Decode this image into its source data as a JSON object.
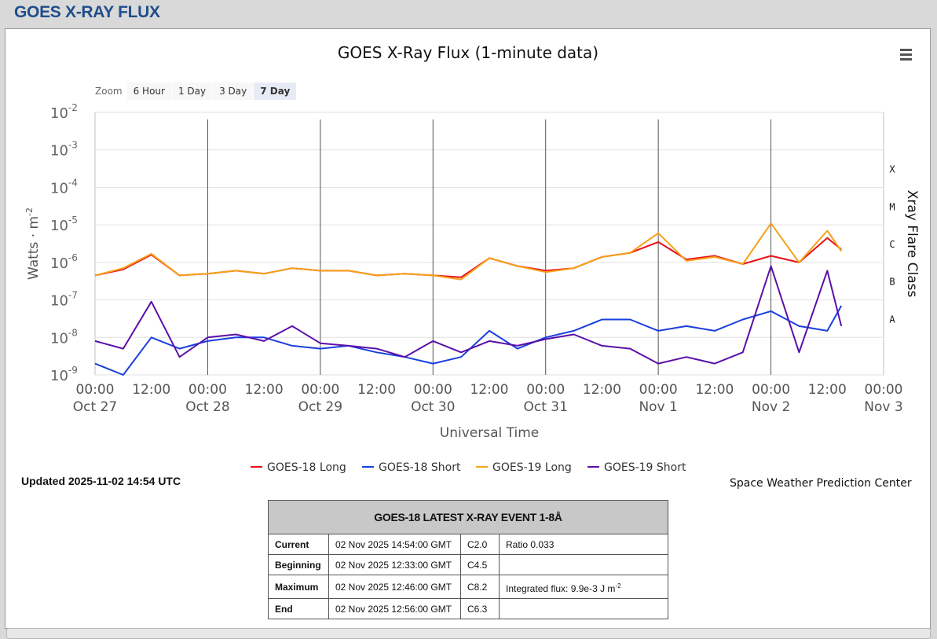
{
  "page": {
    "title": "GOES X-RAY FLUX"
  },
  "menu": {
    "icon": "hamburger-menu-icon"
  },
  "zoom": {
    "label": "Zoom",
    "buttons": [
      "6 Hour",
      "1 Day",
      "3 Day",
      "7 Day"
    ],
    "active": "7 Day"
  },
  "colors": {
    "goes18_long": "#e8121a",
    "goes18_short": "#1a3fe0",
    "goes19_long": "#f7a11a",
    "goes19_short": "#5a10a8",
    "title_blue": "#1f4e8c"
  },
  "chart_data": {
    "type": "line",
    "title": "GOES X-Ray Flux (1-minute data)",
    "xlabel": "Universal Time",
    "ylabel": "Watts · m",
    "ylabel_sup": "-2",
    "y2label": "Xray Flare Class",
    "yscale": "log",
    "ylim": [
      1e-09,
      0.01
    ],
    "y_ticks": [
      {
        "base": "10",
        "exp": "-9"
      },
      {
        "base": "10",
        "exp": "-8"
      },
      {
        "base": "10",
        "exp": "-7"
      },
      {
        "base": "10",
        "exp": "-6"
      },
      {
        "base": "10",
        "exp": "-5"
      },
      {
        "base": "10",
        "exp": "-4"
      },
      {
        "base": "10",
        "exp": "-3"
      },
      {
        "base": "10",
        "exp": "-2"
      }
    ],
    "flare_classes": [
      "A",
      "B",
      "C",
      "M",
      "X"
    ],
    "x_ticks": [
      {
        "time": "00:00",
        "date": "Oct 27"
      },
      {
        "time": "12:00",
        "date": ""
      },
      {
        "time": "00:00",
        "date": "Oct 28"
      },
      {
        "time": "12:00",
        "date": ""
      },
      {
        "time": "00:00",
        "date": "Oct 29"
      },
      {
        "time": "12:00",
        "date": ""
      },
      {
        "time": "00:00",
        "date": "Oct 30"
      },
      {
        "time": "12:00",
        "date": ""
      },
      {
        "time": "00:00",
        "date": "Oct 31"
      },
      {
        "time": "12:00",
        "date": ""
      },
      {
        "time": "00:00",
        "date": "Nov 1"
      },
      {
        "time": "12:00",
        "date": ""
      },
      {
        "time": "00:00",
        "date": "Nov 2"
      },
      {
        "time": "12:00",
        "date": ""
      },
      {
        "time": "00:00",
        "date": "Nov 3"
      }
    ],
    "xlim": [
      "2025-10-27 00:00",
      "2025-11-03 00:00"
    ],
    "grid": true,
    "legend_position": "bottom-center",
    "series": [
      {
        "name": "GOES-18 Long",
        "x": [
          "2025-10-27 00:00",
          "2025-10-27 06:00",
          "2025-10-27 12:00",
          "2025-10-27 18:00",
          "2025-10-28 00:00",
          "2025-10-28 06:00",
          "2025-10-28 12:00",
          "2025-10-28 18:00",
          "2025-10-29 00:00",
          "2025-10-29 06:00",
          "2025-10-29 12:00",
          "2025-10-29 18:00",
          "2025-10-30 00:00",
          "2025-10-30 06:00",
          "2025-10-30 12:00",
          "2025-10-30 18:00",
          "2025-10-31 00:00",
          "2025-10-31 06:00",
          "2025-10-31 12:00",
          "2025-10-31 18:00",
          "2025-11-01 00:00",
          "2025-11-01 06:00",
          "2025-11-01 12:00",
          "2025-11-01 18:00",
          "2025-11-02 00:00",
          "2025-11-02 06:00",
          "2025-11-02 12:00",
          "2025-11-02 15:00"
        ],
        "y": [
          4.5e-07,
          6.5e-07,
          1.6e-06,
          4.5e-07,
          5e-07,
          6e-07,
          5e-07,
          7e-07,
          6e-07,
          6e-07,
          4.5e-07,
          5e-07,
          4.5e-07,
          4e-07,
          1.3e-06,
          8e-07,
          6e-07,
          7e-07,
          1.4e-06,
          1.8e-06,
          3.5e-06,
          1.2e-06,
          1.5e-06,
          9e-07,
          1.5e-06,
          1e-06,
          4.5e-06,
          2.2e-06
        ]
      },
      {
        "name": "GOES-18 Short",
        "x": [
          "2025-10-27 00:00",
          "2025-10-27 06:00",
          "2025-10-27 12:00",
          "2025-10-27 18:00",
          "2025-10-28 00:00",
          "2025-10-28 06:00",
          "2025-10-28 12:00",
          "2025-10-28 18:00",
          "2025-10-29 00:00",
          "2025-10-29 06:00",
          "2025-10-29 12:00",
          "2025-10-29 18:00",
          "2025-10-30 00:00",
          "2025-10-30 06:00",
          "2025-10-30 12:00",
          "2025-10-30 18:00",
          "2025-10-31 00:00",
          "2025-10-31 06:00",
          "2025-10-31 12:00",
          "2025-10-31 18:00",
          "2025-11-01 00:00",
          "2025-11-01 06:00",
          "2025-11-01 12:00",
          "2025-11-01 18:00",
          "2025-11-02 00:00",
          "2025-11-02 06:00",
          "2025-11-02 12:00",
          "2025-11-02 15:00"
        ],
        "y": [
          2e-09,
          1e-09,
          1e-08,
          5e-09,
          8e-09,
          1e-08,
          1e-08,
          6e-09,
          5e-09,
          6e-09,
          4e-09,
          3e-09,
          2e-09,
          3e-09,
          1.5e-08,
          5e-09,
          1e-08,
          1.5e-08,
          3e-08,
          3e-08,
          1.5e-08,
          2e-08,
          1.5e-08,
          3e-08,
          5e-08,
          2e-08,
          1.5e-08,
          7e-08
        ]
      },
      {
        "name": "GOES-19 Long",
        "x": [
          "2025-10-27 00:00",
          "2025-10-27 06:00",
          "2025-10-27 12:00",
          "2025-10-27 18:00",
          "2025-10-28 00:00",
          "2025-10-28 06:00",
          "2025-10-28 12:00",
          "2025-10-28 18:00",
          "2025-10-29 00:00",
          "2025-10-29 06:00",
          "2025-10-29 12:00",
          "2025-10-29 18:00",
          "2025-10-30 00:00",
          "2025-10-30 06:00",
          "2025-10-30 12:00",
          "2025-10-30 18:00",
          "2025-10-31 00:00",
          "2025-10-31 06:00",
          "2025-10-31 12:00",
          "2025-10-31 18:00",
          "2025-11-01 00:00",
          "2025-11-01 06:00",
          "2025-11-01 12:00",
          "2025-11-01 18:00",
          "2025-11-02 00:00",
          "2025-11-02 06:00",
          "2025-11-02 12:00",
          "2025-11-02 15:00"
        ],
        "y": [
          4.5e-07,
          7e-07,
          1.7e-06,
          4.5e-07,
          5e-07,
          6e-07,
          5e-07,
          7e-07,
          6e-07,
          6e-07,
          4.5e-07,
          5e-07,
          4.5e-07,
          3.5e-07,
          1.3e-06,
          8e-07,
          5.5e-07,
          7e-07,
          1.4e-06,
          1.8e-06,
          6e-06,
          1.1e-06,
          1.4e-06,
          9e-07,
          1.1e-05,
          1e-06,
          7e-06,
          2e-06
        ]
      },
      {
        "name": "GOES-19 Short",
        "x": [
          "2025-10-27 00:00",
          "2025-10-27 06:00",
          "2025-10-27 12:00",
          "2025-10-27 18:00",
          "2025-10-28 00:00",
          "2025-10-28 06:00",
          "2025-10-28 12:00",
          "2025-10-28 18:00",
          "2025-10-29 00:00",
          "2025-10-29 06:00",
          "2025-10-29 12:00",
          "2025-10-29 18:00",
          "2025-10-30 00:00",
          "2025-10-30 06:00",
          "2025-10-30 12:00",
          "2025-10-30 18:00",
          "2025-10-31 00:00",
          "2025-10-31 06:00",
          "2025-10-31 12:00",
          "2025-10-31 18:00",
          "2025-11-01 00:00",
          "2025-11-01 06:00",
          "2025-11-01 12:00",
          "2025-11-01 18:00",
          "2025-11-02 00:00",
          "2025-11-02 06:00",
          "2025-11-02 12:00",
          "2025-11-02 15:00"
        ],
        "y": [
          8e-09,
          5e-09,
          9e-08,
          3e-09,
          1e-08,
          1.2e-08,
          8e-09,
          2e-08,
          7e-09,
          6e-09,
          5e-09,
          3e-09,
          8e-09,
          4e-09,
          8e-09,
          6e-09,
          9e-09,
          1.2e-08,
          6e-09,
          5e-09,
          2e-09,
          3e-09,
          2e-09,
          4e-09,
          8e-07,
          4e-09,
          6e-07,
          2e-08
        ]
      }
    ]
  },
  "updated": "Updated 2025-11-02 14:54 UTC",
  "credit": "Space Weather Prediction Center",
  "event_table": {
    "title": "GOES-18 LATEST X-RAY EVENT 1-8Å",
    "rows": [
      {
        "label": "Current",
        "time": "02 Nov 2025 14:54:00 GMT",
        "class": "C2.0",
        "extra": "Ratio 0.033",
        "extra_sup": ""
      },
      {
        "label": "Beginning",
        "time": "02 Nov 2025 12:33:00 GMT",
        "class": "C4.5",
        "extra": "",
        "extra_sup": ""
      },
      {
        "label": "Maximum",
        "time": "02 Nov 2025 12:46:00 GMT",
        "class": "C8.2",
        "extra": "Integrated flux: 9.9e-3 J m",
        "extra_sup": "-2"
      },
      {
        "label": "End",
        "time": "02 Nov 2025 12:56:00 GMT",
        "class": "C6.3",
        "extra": "",
        "extra_sup": ""
      }
    ]
  }
}
